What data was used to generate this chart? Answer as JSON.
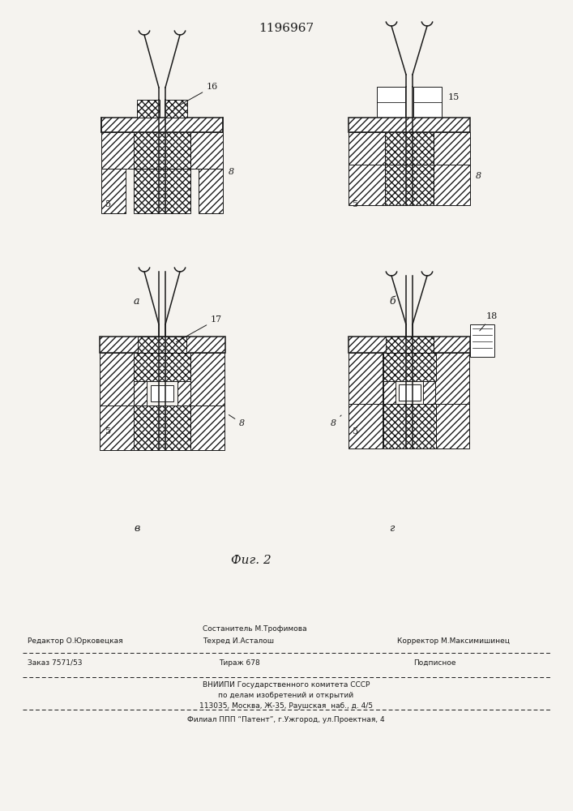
{
  "title": "1196967",
  "fig_label": "Фиг. 2",
  "bg_color": "#f5f3ef",
  "line_color": "#1a1a1a",
  "sub_labels": [
    "a",
    "б",
    "в",
    "г"
  ],
  "footer": {
    "line1_left": "Редактор О.Юрковецкая",
    "line1_center_top": "Состанитель М.Трофимова",
    "line1_center_bot": "Техред И.Асталош",
    "line1_right": "Корректор М.Максимишинец",
    "line2_left": "Заказ 7571/53",
    "line2_center": "Тираж 678",
    "line2_right": "Подписное",
    "line3": "ВНИИПИ Государственного комитета СССР",
    "line4": "по делам изобретений и открытий",
    "line5": "113035, Москва, Ж-35, Раушская  наб., д. 4/5",
    "line6": "Филиал ППП “Патент”, г.Ужгород, ул.Проектная, 4"
  }
}
